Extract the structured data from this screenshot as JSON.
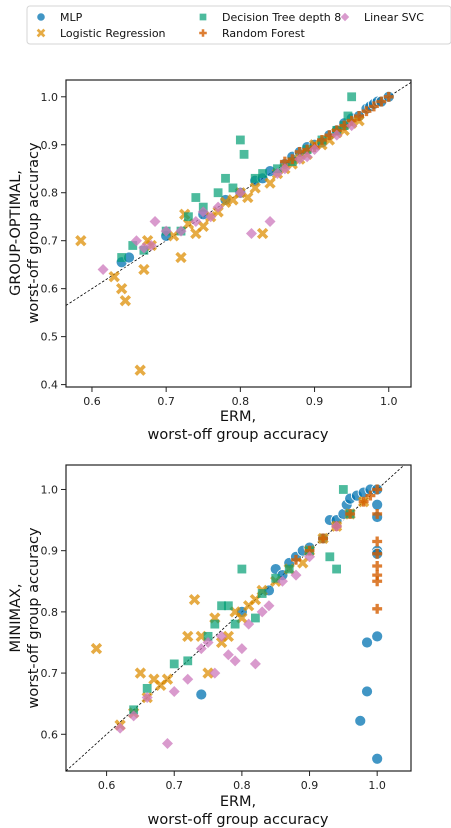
{
  "colors": {
    "MLP": "#0173b2",
    "Logistic Regression": "#de8f05",
    "Decision Tree depth 8": "#029e73",
    "Random Forest": "#d55e00",
    "Linear SVC": "#cc78bc"
  },
  "legend": [
    {
      "name": "MLP",
      "marker": "circle"
    },
    {
      "name": "Logistic Regression",
      "marker": "x"
    },
    {
      "name": "Decision Tree depth 8",
      "marker": "square"
    },
    {
      "name": "Random Forest",
      "marker": "plus"
    },
    {
      "name": "Linear SVC",
      "marker": "diamond"
    }
  ],
  "chart_data": [
    {
      "type": "scatter",
      "xlabel": [
        "ERM,",
        "worst-off group accuracy"
      ],
      "ylabel": [
        "GROUP-OPTIMAL,",
        "worst-off group accuracy"
      ],
      "xlim": [
        0.565,
        1.03
      ],
      "ylim": [
        0.395,
        1.035
      ],
      "xticks": [
        "0.6",
        "0.7",
        "0.8",
        "0.9",
        "1.0"
      ],
      "yticks": [
        "0.4",
        "0.5",
        "0.6",
        "0.7",
        "0.8",
        "0.9",
        "1.0"
      ],
      "reference_line": "y = x",
      "series": [
        {
          "name": "MLP",
          "points": [
            [
              0.64,
              0.655
            ],
            [
              0.65,
              0.665
            ],
            [
              0.7,
              0.71
            ],
            [
              0.75,
              0.755
            ],
            [
              0.78,
              0.785
            ],
            [
              0.8,
              0.8
            ],
            [
              0.82,
              0.825
            ],
            [
              0.83,
              0.83
            ],
            [
              0.84,
              0.845
            ],
            [
              0.86,
              0.86
            ],
            [
              0.87,
              0.875
            ],
            [
              0.88,
              0.885
            ],
            [
              0.89,
              0.895
            ],
            [
              0.9,
              0.9
            ],
            [
              0.91,
              0.905
            ],
            [
              0.92,
              0.92
            ],
            [
              0.93,
              0.93
            ],
            [
              0.94,
              0.945
            ],
            [
              0.95,
              0.955
            ],
            [
              0.96,
              0.96
            ],
            [
              0.97,
              0.975
            ],
            [
              0.975,
              0.98
            ],
            [
              0.98,
              0.985
            ],
            [
              0.985,
              0.99
            ],
            [
              0.99,
              0.99
            ],
            [
              1.0,
              1.0
            ]
          ]
        },
        {
          "name": "Logistic Regression",
          "points": [
            [
              0.585,
              0.7
            ],
            [
              0.63,
              0.625
            ],
            [
              0.64,
              0.6
            ],
            [
              0.645,
              0.575
            ],
            [
              0.665,
              0.43
            ],
            [
              0.67,
              0.64
            ],
            [
              0.675,
              0.7
            ],
            [
              0.68,
              0.69
            ],
            [
              0.71,
              0.71
            ],
            [
              0.72,
              0.665
            ],
            [
              0.725,
              0.755
            ],
            [
              0.73,
              0.735
            ],
            [
              0.74,
              0.715
            ],
            [
              0.75,
              0.73
            ],
            [
              0.76,
              0.75
            ],
            [
              0.77,
              0.76
            ],
            [
              0.78,
              0.78
            ],
            [
              0.79,
              0.785
            ],
            [
              0.8,
              0.8
            ],
            [
              0.81,
              0.79
            ],
            [
              0.82,
              0.81
            ],
            [
              0.83,
              0.715
            ],
            [
              0.84,
              0.82
            ],
            [
              0.85,
              0.84
            ],
            [
              0.86,
              0.85
            ],
            [
              0.87,
              0.86
            ],
            [
              0.88,
              0.87
            ],
            [
              0.89,
              0.88
            ],
            [
              0.9,
              0.9
            ],
            [
              0.91,
              0.9
            ],
            [
              0.92,
              0.91
            ],
            [
              0.93,
              0.925
            ],
            [
              0.94,
              0.93
            ],
            [
              0.95,
              0.945
            ],
            [
              0.96,
              0.95
            ]
          ]
        },
        {
          "name": "Decision Tree depth 8",
          "points": [
            [
              0.64,
              0.665
            ],
            [
              0.655,
              0.69
            ],
            [
              0.67,
              0.68
            ],
            [
              0.7,
              0.72
            ],
            [
              0.72,
              0.72
            ],
            [
              0.73,
              0.75
            ],
            [
              0.74,
              0.79
            ],
            [
              0.75,
              0.77
            ],
            [
              0.77,
              0.8
            ],
            [
              0.78,
              0.83
            ],
            [
              0.79,
              0.81
            ],
            [
              0.8,
              0.91
            ],
            [
              0.805,
              0.88
            ],
            [
              0.82,
              0.83
            ],
            [
              0.83,
              0.84
            ],
            [
              0.85,
              0.85
            ],
            [
              0.87,
              0.865
            ],
            [
              0.89,
              0.89
            ],
            [
              0.91,
              0.91
            ],
            [
              0.93,
              0.93
            ],
            [
              0.94,
              0.94
            ],
            [
              0.945,
              0.96
            ],
            [
              0.95,
              1.0
            ]
          ]
        },
        {
          "name": "Random Forest",
          "points": [
            [
              0.86,
              0.865
            ],
            [
              0.87,
              0.87
            ],
            [
              0.88,
              0.885
            ],
            [
              0.89,
              0.89
            ],
            [
              0.9,
              0.895
            ],
            [
              0.91,
              0.91
            ],
            [
              0.92,
              0.92
            ],
            [
              0.93,
              0.93
            ],
            [
              0.94,
              0.94
            ],
            [
              0.95,
              0.95
            ],
            [
              0.96,
              0.96
            ],
            [
              0.97,
              0.97
            ],
            [
              0.98,
              0.98
            ],
            [
              0.99,
              0.99
            ],
            [
              1.0,
              1.0
            ]
          ]
        },
        {
          "name": "Linear SVC",
          "points": [
            [
              0.615,
              0.64
            ],
            [
              0.66,
              0.7
            ],
            [
              0.67,
              0.685
            ],
            [
              0.68,
              0.69
            ],
            [
              0.685,
              0.74
            ],
            [
              0.7,
              0.72
            ],
            [
              0.72,
              0.72
            ],
            [
              0.74,
              0.74
            ],
            [
              0.75,
              0.76
            ],
            [
              0.76,
              0.75
            ],
            [
              0.77,
              0.77
            ],
            [
              0.8,
              0.8
            ],
            [
              0.815,
              0.715
            ],
            [
              0.84,
              0.74
            ],
            [
              0.85,
              0.84
            ],
            [
              0.86,
              0.85
            ],
            [
              0.88,
              0.87
            ],
            [
              0.89,
              0.875
            ],
            [
              0.9,
              0.89
            ],
            [
              0.93,
              0.92
            ],
            [
              0.95,
              0.94
            ]
          ]
        }
      ]
    },
    {
      "type": "scatter",
      "xlabel": [
        "ERM,",
        "worst-off group accuracy"
      ],
      "ylabel": [
        "MINIMAX,",
        "worst-off group accuracy"
      ],
      "xlim": [
        0.54,
        1.05
      ],
      "ylim": [
        0.54,
        1.04
      ],
      "xticks": [
        "0.6",
        "0.7",
        "0.8",
        "0.9",
        "1.0"
      ],
      "yticks": [
        "0.6",
        "0.7",
        "0.8",
        "0.9",
        "1.0"
      ],
      "reference_line": "y = x",
      "series": [
        {
          "name": "MLP",
          "points": [
            [
              0.74,
              0.665
            ],
            [
              0.8,
              0.8
            ],
            [
              0.84,
              0.835
            ],
            [
              0.85,
              0.87
            ],
            [
              0.86,
              0.86
            ],
            [
              0.87,
              0.88
            ],
            [
              0.88,
              0.89
            ],
            [
              0.89,
              0.9
            ],
            [
              0.9,
              0.905
            ],
            [
              0.92,
              0.92
            ],
            [
              0.93,
              0.95
            ],
            [
              0.94,
              0.95
            ],
            [
              0.95,
              0.96
            ],
            [
              0.955,
              0.975
            ],
            [
              0.96,
              0.985
            ],
            [
              0.97,
              0.99
            ],
            [
              0.98,
              0.995
            ],
            [
              0.99,
              1.0
            ],
            [
              1.0,
              1.0
            ],
            [
              1.0,
              0.975
            ],
            [
              1.0,
              0.955
            ],
            [
              1.0,
              0.9
            ],
            [
              1.0,
              0.895
            ],
            [
              0.985,
              0.75
            ],
            [
              1.0,
              0.76
            ],
            [
              0.985,
              0.67
            ],
            [
              0.975,
              0.622
            ],
            [
              1.0,
              0.56
            ]
          ]
        },
        {
          "name": "Logistic Regression",
          "points": [
            [
              0.585,
              0.74
            ],
            [
              0.62,
              0.615
            ],
            [
              0.64,
              0.635
            ],
            [
              0.65,
              0.7
            ],
            [
              0.66,
              0.66
            ],
            [
              0.67,
              0.69
            ],
            [
              0.68,
              0.68
            ],
            [
              0.69,
              0.69
            ],
            [
              0.72,
              0.76
            ],
            [
              0.73,
              0.82
            ],
            [
              0.74,
              0.76
            ],
            [
              0.75,
              0.7
            ],
            [
              0.76,
              0.79
            ],
            [
              0.77,
              0.75
            ],
            [
              0.78,
              0.76
            ],
            [
              0.79,
              0.8
            ],
            [
              0.8,
              0.79
            ],
            [
              0.81,
              0.81
            ],
            [
              0.82,
              0.82
            ],
            [
              0.83,
              0.835
            ],
            [
              0.85,
              0.85
            ],
            [
              0.87,
              0.87
            ],
            [
              0.89,
              0.88
            ],
            [
              0.9,
              0.9
            ],
            [
              0.92,
              0.92
            ],
            [
              0.94,
              0.94
            ],
            [
              0.96,
              0.96
            ],
            [
              0.98,
              0.98
            ]
          ]
        },
        {
          "name": "Decision Tree depth 8",
          "points": [
            [
              0.64,
              0.64
            ],
            [
              0.66,
              0.675
            ],
            [
              0.7,
              0.715
            ],
            [
              0.72,
              0.72
            ],
            [
              0.75,
              0.76
            ],
            [
              0.76,
              0.78
            ],
            [
              0.77,
              0.81
            ],
            [
              0.78,
              0.81
            ],
            [
              0.79,
              0.78
            ],
            [
              0.8,
              0.87
            ],
            [
              0.82,
              0.79
            ],
            [
              0.83,
              0.83
            ],
            [
              0.85,
              0.855
            ],
            [
              0.87,
              0.87
            ],
            [
              0.9,
              0.9
            ],
            [
              0.93,
              0.89
            ],
            [
              0.94,
              0.87
            ],
            [
              0.95,
              1.0
            ],
            [
              0.96,
              0.96
            ]
          ]
        },
        {
          "name": "Random Forest",
          "points": [
            [
              0.88,
              0.885
            ],
            [
              0.9,
              0.9
            ],
            [
              0.92,
              0.92
            ],
            [
              0.94,
              0.94
            ],
            [
              0.96,
              0.96
            ],
            [
              0.98,
              0.98
            ],
            [
              0.99,
              0.99
            ],
            [
              1.0,
              1.0
            ],
            [
              1.0,
              0.96
            ],
            [
              1.0,
              0.915
            ],
            [
              1.0,
              0.895
            ],
            [
              1.0,
              0.875
            ],
            [
              1.0,
              0.86
            ],
            [
              1.0,
              0.85
            ],
            [
              1.0,
              0.805
            ]
          ]
        },
        {
          "name": "Linear SVC",
          "points": [
            [
              0.62,
              0.61
            ],
            [
              0.64,
              0.63
            ],
            [
              0.66,
              0.66
            ],
            [
              0.69,
              0.585
            ],
            [
              0.7,
              0.67
            ],
            [
              0.72,
              0.69
            ],
            [
              0.74,
              0.74
            ],
            [
              0.75,
              0.75
            ],
            [
              0.76,
              0.7
            ],
            [
              0.77,
              0.76
            ],
            [
              0.78,
              0.73
            ],
            [
              0.79,
              0.72
            ],
            [
              0.8,
              0.74
            ],
            [
              0.81,
              0.78
            ],
            [
              0.82,
              0.715
            ],
            [
              0.83,
              0.8
            ],
            [
              0.84,
              0.81
            ],
            [
              0.86,
              0.85
            ],
            [
              0.88,
              0.86
            ],
            [
              0.9,
              0.89
            ],
            [
              0.94,
              0.94
            ]
          ]
        }
      ]
    }
  ]
}
